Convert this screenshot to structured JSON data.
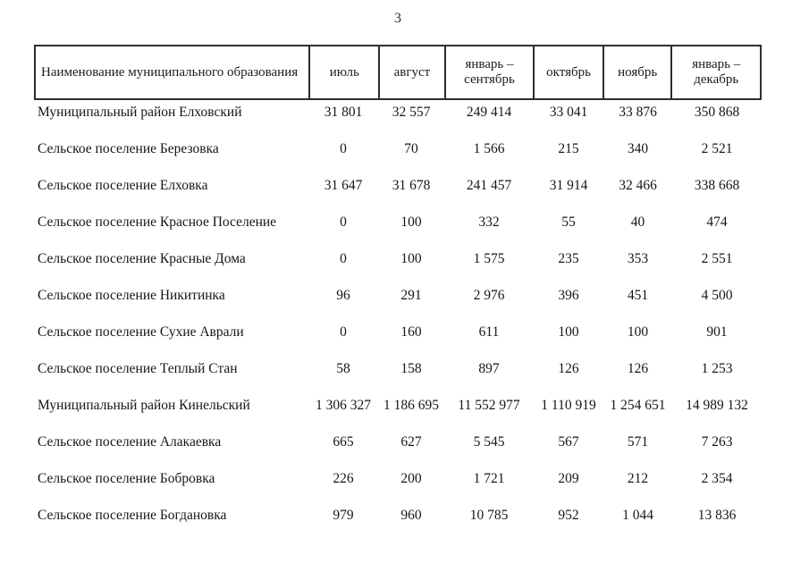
{
  "page": {
    "number": "3"
  },
  "table": {
    "columns": [
      {
        "label": "Наименование муниципального образования"
      },
      {
        "label": "июль"
      },
      {
        "label": "август"
      },
      {
        "label": "январь – сентябрь"
      },
      {
        "label": "октябрь"
      },
      {
        "label": "ноябрь"
      },
      {
        "label": "январь – декабрь"
      }
    ],
    "rows": [
      {
        "name": "Муниципальный район Елховский",
        "values": [
          "31 801",
          "32 557",
          "249 414",
          "33 041",
          "33 876",
          "350 868"
        ]
      },
      {
        "name": "Сельское поселение Березовка",
        "values": [
          "0",
          "70",
          "1 566",
          "215",
          "340",
          "2 521"
        ]
      },
      {
        "name": "Сельское поселение Елховка",
        "values": [
          "31 647",
          "31 678",
          "241 457",
          "31 914",
          "32 466",
          "338 668"
        ]
      },
      {
        "name": "Сельское поселение Красное Поселение",
        "values": [
          "0",
          "100",
          "332",
          "55",
          "40",
          "474"
        ]
      },
      {
        "name": "Сельское поселение Красные Дома",
        "values": [
          "0",
          "100",
          "1 575",
          "235",
          "353",
          "2 551"
        ]
      },
      {
        "name": "Сельское поселение Никитинка",
        "values": [
          "96",
          "291",
          "2 976",
          "396",
          "451",
          "4 500"
        ]
      },
      {
        "name": "Сельское поселение Сухие Аврали",
        "values": [
          "0",
          "160",
          "611",
          "100",
          "100",
          "901"
        ]
      },
      {
        "name": "Сельское поселение Теплый Стан",
        "values": [
          "58",
          "158",
          "897",
          "126",
          "126",
          "1 253"
        ]
      },
      {
        "name": "Муниципальный район Кинельский",
        "values": [
          "1 306 327",
          "1 186 695",
          "11 552 977",
          "1 110 919",
          "1 254 651",
          "14 989 132"
        ]
      },
      {
        "name": "Сельское поселение Алакаевка",
        "values": [
          "665",
          "627",
          "5 545",
          "567",
          "571",
          "7 263"
        ]
      },
      {
        "name": "Сельское поселение Бобровка",
        "values": [
          "226",
          "200",
          "1 721",
          "209",
          "212",
          "2 354"
        ]
      },
      {
        "name": "Сельское поселение Богдановка",
        "values": [
          "979",
          "960",
          "10 785",
          "952",
          "1 044",
          "13 836"
        ]
      }
    ]
  }
}
